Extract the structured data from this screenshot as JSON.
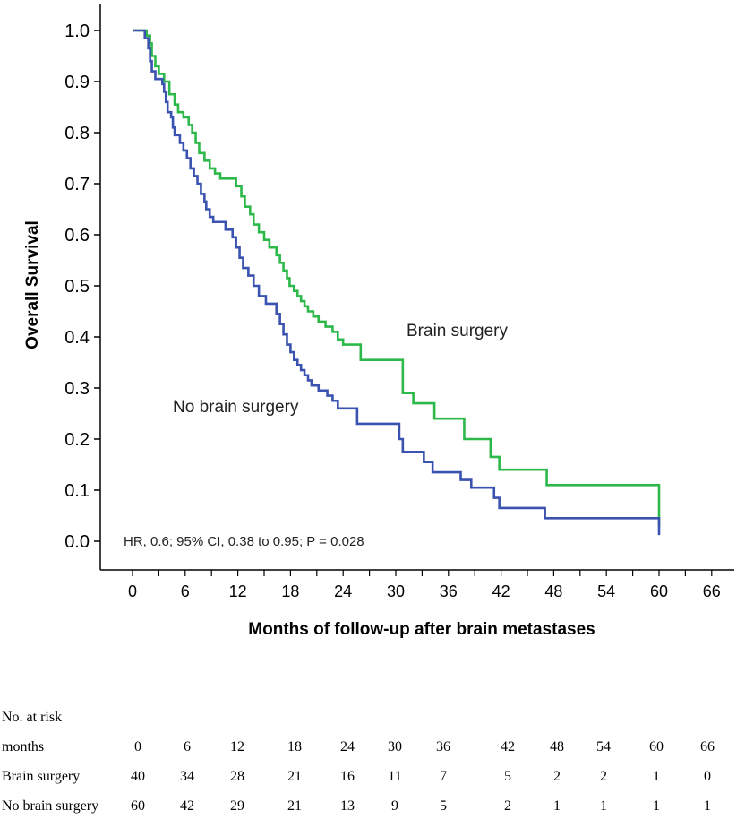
{
  "chart_data": {
    "type": "line",
    "subtype": "kaplan-meier",
    "ylabel": "Overall Survival",
    "xlabel": "Months of follow-up after brain metastases",
    "x_ticks": [
      0,
      6,
      12,
      18,
      24,
      30,
      36,
      42,
      48,
      54,
      60,
      66
    ],
    "y_ticks": [
      "0.0",
      "0.1",
      "0.2",
      "0.3",
      "0.4",
      "0.5",
      "0.6",
      "0.7",
      "0.8",
      "0.9",
      "1.0"
    ],
    "xlim": [
      0,
      66
    ],
    "ylim": [
      0,
      1
    ],
    "annotations": {
      "brain_surgery_label": "Brain surgery",
      "no_brain_surgery_label": "No brain surgery",
      "stats": "HR, 0.6; 95% CI, 0.38 to 0.95; P = 0.028"
    },
    "series": [
      {
        "name": "Brain surgery",
        "color": "#2db84a",
        "points": [
          [
            0,
            1.0
          ],
          [
            1.2,
            1.0
          ],
          [
            1.6,
            0.99
          ],
          [
            2.0,
            0.975
          ],
          [
            2.2,
            0.95
          ],
          [
            2.6,
            0.93
          ],
          [
            3.0,
            0.915
          ],
          [
            3.6,
            0.9
          ],
          [
            4.2,
            0.875
          ],
          [
            4.8,
            0.855
          ],
          [
            5.2,
            0.84
          ],
          [
            5.8,
            0.83
          ],
          [
            6.4,
            0.815
          ],
          [
            6.8,
            0.8
          ],
          [
            7.2,
            0.78
          ],
          [
            7.6,
            0.76
          ],
          [
            8.2,
            0.745
          ],
          [
            8.8,
            0.73
          ],
          [
            9.4,
            0.72
          ],
          [
            10.0,
            0.71
          ],
          [
            11.8,
            0.695
          ],
          [
            12.4,
            0.675
          ],
          [
            12.8,
            0.655
          ],
          [
            13.4,
            0.64
          ],
          [
            13.8,
            0.62
          ],
          [
            14.4,
            0.605
          ],
          [
            15.0,
            0.59
          ],
          [
            15.6,
            0.575
          ],
          [
            16.4,
            0.56
          ],
          [
            16.8,
            0.545
          ],
          [
            17.2,
            0.53
          ],
          [
            17.6,
            0.515
          ],
          [
            17.9,
            0.5
          ],
          [
            18.4,
            0.49
          ],
          [
            18.8,
            0.48
          ],
          [
            19.2,
            0.47
          ],
          [
            19.6,
            0.46
          ],
          [
            20.0,
            0.45
          ],
          [
            20.6,
            0.44
          ],
          [
            21.2,
            0.43
          ],
          [
            22.0,
            0.42
          ],
          [
            22.8,
            0.41
          ],
          [
            23.4,
            0.395
          ],
          [
            24.0,
            0.385
          ],
          [
            26.0,
            0.355
          ],
          [
            30.8,
            0.29
          ],
          [
            32.0,
            0.27
          ],
          [
            34.4,
            0.24
          ],
          [
            37.8,
            0.2
          ],
          [
            40.8,
            0.165
          ],
          [
            41.8,
            0.14
          ],
          [
            47.2,
            0.11
          ],
          [
            60.0,
            0.03
          ]
        ]
      },
      {
        "name": "No brain surgery",
        "color": "#3a52b0",
        "points": [
          [
            0,
            1.0
          ],
          [
            1.0,
            1.0
          ],
          [
            1.4,
            0.985
          ],
          [
            1.8,
            0.965
          ],
          [
            2.0,
            0.94
          ],
          [
            2.2,
            0.92
          ],
          [
            2.6,
            0.905
          ],
          [
            3.4,
            0.895
          ],
          [
            3.6,
            0.88
          ],
          [
            3.8,
            0.86
          ],
          [
            4.0,
            0.84
          ],
          [
            4.4,
            0.83
          ],
          [
            4.6,
            0.81
          ],
          [
            4.8,
            0.795
          ],
          [
            5.4,
            0.78
          ],
          [
            5.8,
            0.765
          ],
          [
            6.2,
            0.75
          ],
          [
            6.6,
            0.73
          ],
          [
            7.0,
            0.715
          ],
          [
            7.4,
            0.7
          ],
          [
            7.8,
            0.68
          ],
          [
            8.2,
            0.665
          ],
          [
            8.4,
            0.65
          ],
          [
            8.8,
            0.635
          ],
          [
            9.2,
            0.625
          ],
          [
            10.6,
            0.61
          ],
          [
            11.4,
            0.595
          ],
          [
            11.8,
            0.575
          ],
          [
            12.2,
            0.555
          ],
          [
            12.6,
            0.535
          ],
          [
            13.2,
            0.52
          ],
          [
            13.8,
            0.5
          ],
          [
            14.4,
            0.48
          ],
          [
            15.2,
            0.465
          ],
          [
            16.4,
            0.445
          ],
          [
            16.8,
            0.425
          ],
          [
            17.2,
            0.405
          ],
          [
            17.6,
            0.385
          ],
          [
            18.0,
            0.37
          ],
          [
            18.4,
            0.355
          ],
          [
            18.8,
            0.345
          ],
          [
            19.2,
            0.335
          ],
          [
            19.6,
            0.325
          ],
          [
            20.0,
            0.315
          ],
          [
            20.4,
            0.305
          ],
          [
            21.2,
            0.295
          ],
          [
            22.2,
            0.285
          ],
          [
            22.8,
            0.275
          ],
          [
            23.4,
            0.26
          ],
          [
            25.6,
            0.23
          ],
          [
            30.4,
            0.2
          ],
          [
            30.8,
            0.175
          ],
          [
            33.2,
            0.155
          ],
          [
            34.2,
            0.135
          ],
          [
            37.4,
            0.12
          ],
          [
            37.8,
            0.12
          ],
          [
            38.6,
            0.105
          ],
          [
            41.2,
            0.085
          ],
          [
            41.8,
            0.065
          ],
          [
            47.0,
            0.045
          ],
          [
            60.0,
            0.012
          ]
        ]
      }
    ]
  },
  "risk_table": {
    "title": "No. at risk",
    "months_label": "months",
    "months": [
      "0",
      "6",
      "12",
      "18",
      "24",
      "30",
      "36",
      "42",
      "48",
      "54",
      "60",
      "66"
    ],
    "rows": [
      {
        "label": "Brain surgery",
        "values": [
          "40",
          "34",
          "28",
          "21",
          "16",
          "11",
          "7",
          "5",
          "2",
          "2",
          "1",
          "0"
        ]
      },
      {
        "label": "No brain surgery",
        "values": [
          "60",
          "42",
          "29",
          "21",
          "13",
          "9",
          "5",
          "2",
          "1",
          "1",
          "1",
          "1"
        ]
      }
    ]
  }
}
